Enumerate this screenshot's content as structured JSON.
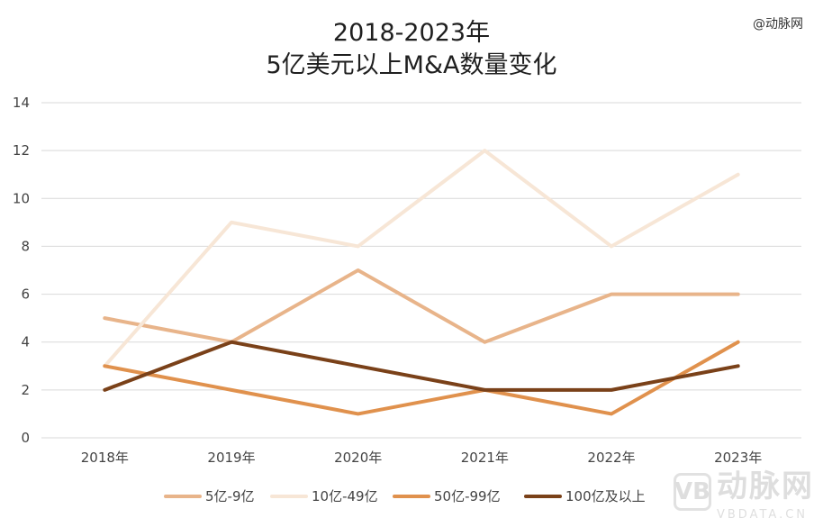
{
  "brand": "@动脉网",
  "watermark": {
    "logo": "VB",
    "cn": "动脉网",
    "en": "VBDATA.CN"
  },
  "chart_data": {
    "type": "line",
    "title": [
      "2018-2023年",
      "5亿美元以上M&A数量变化"
    ],
    "categories": [
      "2018年",
      "2019年",
      "2020年",
      "2021年",
      "2022年",
      "2023年"
    ],
    "ylim": [
      0,
      14
    ],
    "yticks": [
      0,
      2,
      4,
      6,
      8,
      10,
      12,
      14
    ],
    "grid": true,
    "legend_position": "bottom",
    "series": [
      {
        "name": "5亿-9亿",
        "color": "#e8b48a",
        "values": [
          5,
          4,
          7,
          4,
          6,
          6
        ]
      },
      {
        "name": "10亿-49亿",
        "color": "#f7e6d6",
        "values": [
          3,
          9,
          8,
          12,
          8,
          11
        ]
      },
      {
        "name": "50亿-99亿",
        "color": "#e0914d",
        "values": [
          3,
          2,
          1,
          2,
          1,
          4
        ]
      },
      {
        "name": "100亿及以上",
        "color": "#7a4119",
        "values": [
          2,
          4,
          3,
          2,
          2,
          3
        ]
      }
    ]
  }
}
